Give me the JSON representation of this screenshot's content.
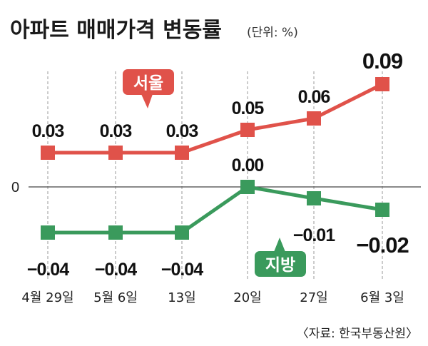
{
  "chart_data": {
    "type": "line",
    "title": "아파트 매매가격 변동률",
    "unit": "(단위: %)",
    "categories": [
      "4월 29일",
      "5월 6일",
      "13일",
      "20일",
      "27일",
      "6월 3일"
    ],
    "zero_label": "0",
    "series": [
      {
        "name": "서울",
        "color": "#e0524a",
        "values": [
          0.03,
          0.03,
          0.03,
          0.05,
          0.06,
          0.09
        ],
        "labels": [
          "0.03",
          "0.03",
          "0.03",
          "0.05",
          "0.06",
          "0.09"
        ]
      },
      {
        "name": "지방",
        "color": "#3a9a5c",
        "values": [
          -0.04,
          -0.04,
          -0.04,
          0.0,
          -0.01,
          -0.02
        ],
        "labels": [
          "−0.04",
          "−0.04",
          "−0.04",
          "0.00",
          "−0.01",
          "−0.02"
        ]
      }
    ],
    "source": "〈자료: 한국부동산원〉",
    "grid": "vertical-dashed"
  }
}
